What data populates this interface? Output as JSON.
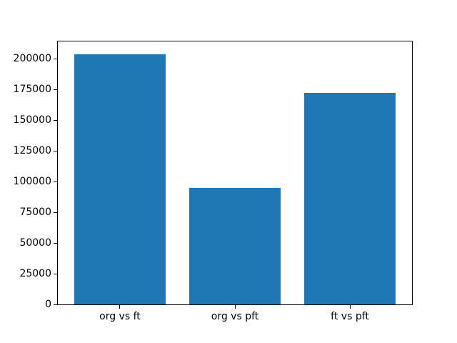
{
  "chart_data": {
    "type": "bar",
    "categories": [
      "org vs ft",
      "org vs pft",
      "ft vs pft"
    ],
    "values": [
      204000,
      95000,
      172500
    ],
    "title": "",
    "xlabel": "",
    "ylabel": "",
    "ylim": [
      0,
      214200
    ],
    "yticks": [
      0,
      25000,
      50000,
      75000,
      100000,
      125000,
      150000,
      175000,
      200000
    ],
    "bar_color": "#1f77b4",
    "spine_color": "#000000",
    "background_color": "#ffffff",
    "grid": false,
    "legend_position": "none",
    "bar_width_fraction": 0.8,
    "x_margin_units": 0.54
  }
}
